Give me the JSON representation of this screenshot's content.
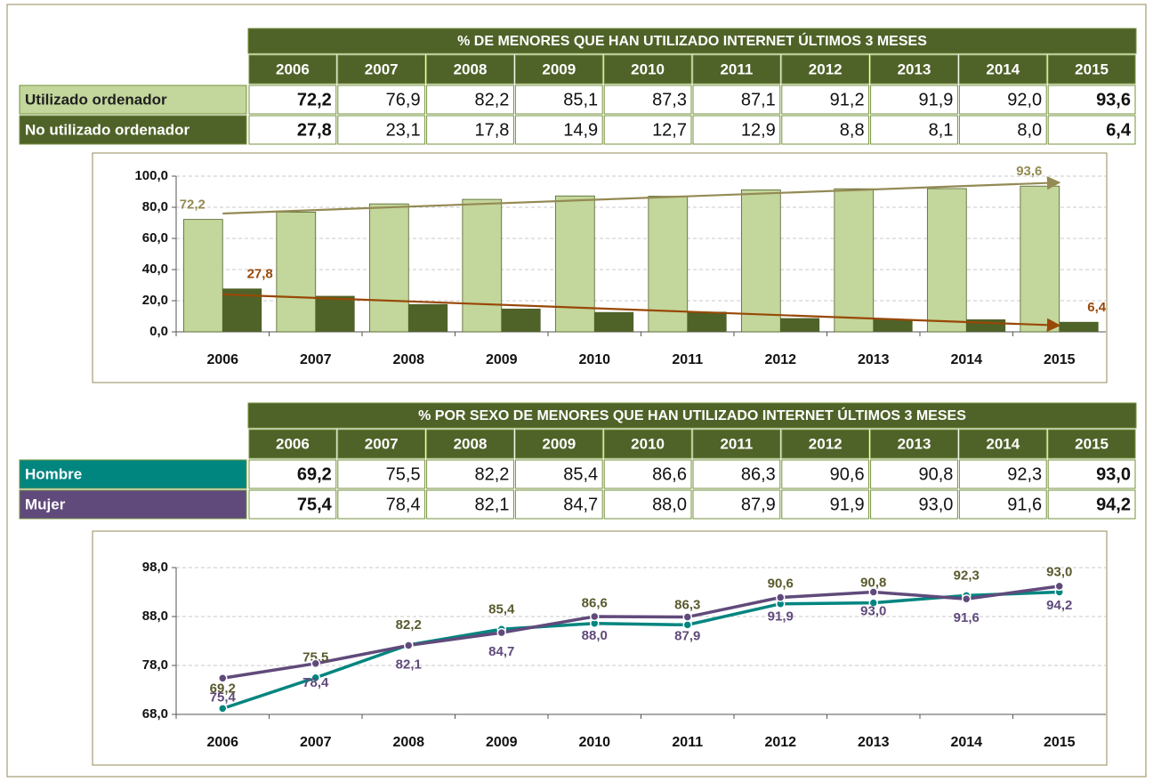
{
  "table_1": {
    "title": "% DE MENORES QUE HAN UTILIZADO INTERNET ÚLTIMOS 3 MESES",
    "columns": [
      "2006",
      "2007",
      "2008",
      "2009",
      "2010",
      "2011",
      "2012",
      "2013",
      "2014",
      "2015"
    ],
    "rows": [
      {
        "label": "Utilizado ordenador",
        "cells": [
          "72,2",
          "76,9",
          "82,2",
          "85,1",
          "87,3",
          "87,1",
          "91,2",
          "91,9",
          "92,0",
          "93,6"
        ]
      },
      {
        "label": "No utilizado ordenador",
        "cells": [
          "27,8",
          "23,1",
          "17,8",
          "14,9",
          "12,7",
          "12,9",
          "8,8",
          "8,1",
          "8,0",
          "6,4"
        ]
      }
    ]
  },
  "table_2": {
    "title": "% POR SEXO DE MENORES QUE HAN UTILIZADO INTERNET ÚLTIMOS 3 MESES",
    "columns": [
      "2006",
      "2007",
      "2008",
      "2009",
      "2010",
      "2011",
      "2012",
      "2013",
      "2014",
      "2015"
    ],
    "rows": [
      {
        "label": "Hombre",
        "cells": [
          "69,2",
          "75,5",
          "82,2",
          "85,4",
          "86,6",
          "86,3",
          "90,6",
          "90,8",
          "92,3",
          "93,0"
        ]
      },
      {
        "label": "Mujer",
        "cells": [
          "75,4",
          "78,4",
          "82,1",
          "84,7",
          "88,0",
          "87,9",
          "91,9",
          "93,0",
          "91,6",
          "94,2"
        ]
      }
    ]
  },
  "chart_data": [
    {
      "type": "bar",
      "categories": [
        "2006",
        "2007",
        "2008",
        "2009",
        "2010",
        "2011",
        "2012",
        "2013",
        "2014",
        "2015"
      ],
      "series": [
        {
          "name": "Utilizado ordenador",
          "color": "#c3d69b",
          "trend_color": "#948a54",
          "label_color": "#948a54",
          "values": [
            72.2,
            76.9,
            82.2,
            85.1,
            87.3,
            87.1,
            91.2,
            91.9,
            92.0,
            93.6
          ],
          "value_labels": [
            "72,2",
            null,
            null,
            null,
            null,
            null,
            null,
            null,
            null,
            "93,6"
          ]
        },
        {
          "name": "No utilizado ordenador",
          "color": "#4f6228",
          "trend_color": "#984807",
          "label_color": "#984807",
          "values": [
            27.8,
            23.1,
            17.8,
            14.9,
            12.7,
            12.9,
            8.8,
            8.1,
            8.0,
            6.4
          ],
          "value_labels": [
            "27,8",
            null,
            null,
            null,
            null,
            null,
            null,
            null,
            null,
            "6,4"
          ]
        }
      ],
      "trendline": true,
      "ylim": [
        0,
        100
      ],
      "yticks": [
        {
          "value": 0,
          "label": "0,0"
        },
        {
          "value": 20,
          "label": "20,0"
        },
        {
          "value": 40,
          "label": "40,0"
        },
        {
          "value": 60,
          "label": "60,0"
        },
        {
          "value": 80,
          "label": "80,0"
        },
        {
          "value": 100,
          "label": "100,0"
        }
      ],
      "grid": true
    },
    {
      "type": "line",
      "categories": [
        "2006",
        "2007",
        "2008",
        "2009",
        "2010",
        "2011",
        "2012",
        "2013",
        "2014",
        "2015"
      ],
      "series": [
        {
          "name": "Hombre",
          "color": "#00857f",
          "label_color": "#5a5a2e",
          "values": [
            69.2,
            75.5,
            82.2,
            85.4,
            86.6,
            86.3,
            90.6,
            90.8,
            92.3,
            93.0
          ],
          "value_labels": [
            "69,2",
            "75,5",
            "82,2",
            "85,4",
            "86,6",
            "86,3",
            "90,6",
            "90,8",
            "92,3",
            "93,0"
          ]
        },
        {
          "name": "Mujer",
          "color": "#604a7b",
          "label_color": "#604a7b",
          "values": [
            75.4,
            78.4,
            82.1,
            84.7,
            88.0,
            87.9,
            91.9,
            93.0,
            91.6,
            94.2
          ],
          "value_labels": [
            "75,4",
            "78,4",
            "82,1",
            "84,7",
            "88,0",
            "87,9",
            "91,9",
            "93,0",
            "91,6",
            "94,2"
          ]
        }
      ],
      "ylim": [
        68,
        98
      ],
      "yticks": [
        {
          "value": 68,
          "label": "68,0"
        },
        {
          "value": 78,
          "label": "78,0"
        },
        {
          "value": 88,
          "label": "88,0"
        },
        {
          "value": 98,
          "label": "98,0"
        }
      ],
      "grid": true
    }
  ]
}
